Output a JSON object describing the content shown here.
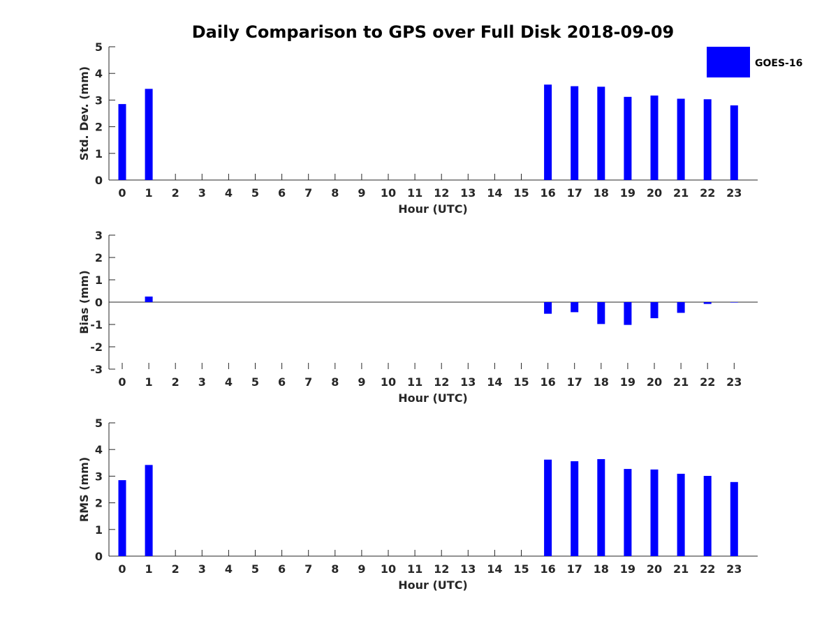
{
  "figure": {
    "title": "Daily Comparison to GPS over Full Disk 2018-09-09"
  },
  "legend": {
    "label": "GOES-16",
    "color": "#0000ff",
    "placement": "top-right"
  },
  "chart_data": [
    {
      "type": "bar",
      "name": "std-dev",
      "title": "Daily Comparison to GPS over Full Disk 2018-09-09",
      "xlabel": "Hour (UTC)",
      "ylabel": "Std. Dev. (mm)",
      "ylim": [
        0,
        5
      ],
      "yticks": [
        0,
        1,
        2,
        3,
        4,
        5
      ],
      "categories": [
        "0",
        "1",
        "2",
        "3",
        "4",
        "5",
        "6",
        "7",
        "8",
        "9",
        "10",
        "11",
        "12",
        "13",
        "14",
        "15",
        "16",
        "17",
        "18",
        "19",
        "20",
        "21",
        "22",
        "23"
      ],
      "series": [
        {
          "name": "GOES-16",
          "color": "#0000ff",
          "values": [
            2.85,
            3.42,
            null,
            null,
            null,
            null,
            null,
            null,
            null,
            null,
            null,
            null,
            null,
            null,
            null,
            null,
            3.58,
            3.52,
            3.5,
            3.12,
            3.17,
            3.05,
            3.03,
            2.8
          ]
        }
      ],
      "legend": "top-right",
      "grid": false
    },
    {
      "type": "bar",
      "name": "bias",
      "xlabel": "Hour (UTC)",
      "ylabel": "Bias (mm)",
      "ylim": [
        -3,
        3
      ],
      "yticks": [
        -3,
        -2,
        -1,
        0,
        1,
        2,
        3
      ],
      "categories": [
        "0",
        "1",
        "2",
        "3",
        "4",
        "5",
        "6",
        "7",
        "8",
        "9",
        "10",
        "11",
        "12",
        "13",
        "14",
        "15",
        "16",
        "17",
        "18",
        "19",
        "20",
        "21",
        "22",
        "23"
      ],
      "series": [
        {
          "name": "GOES-16",
          "color": "#0000ff",
          "values": [
            0.0,
            0.25,
            null,
            null,
            null,
            null,
            null,
            null,
            null,
            null,
            null,
            null,
            null,
            null,
            null,
            null,
            -0.52,
            -0.45,
            -0.98,
            -1.02,
            -0.72,
            -0.48,
            -0.08,
            -0.02
          ]
        }
      ],
      "grid": false
    },
    {
      "type": "bar",
      "name": "rms",
      "xlabel": "Hour (UTC)",
      "ylabel": "RMS (mm)",
      "ylim": [
        0,
        5
      ],
      "yticks": [
        0,
        1,
        2,
        3,
        4,
        5
      ],
      "categories": [
        "0",
        "1",
        "2",
        "3",
        "4",
        "5",
        "6",
        "7",
        "8",
        "9",
        "10",
        "11",
        "12",
        "13",
        "14",
        "15",
        "16",
        "17",
        "18",
        "19",
        "20",
        "21",
        "22",
        "23"
      ],
      "series": [
        {
          "name": "GOES-16",
          "color": "#0000ff",
          "values": [
            2.85,
            3.42,
            null,
            null,
            null,
            null,
            null,
            null,
            null,
            null,
            null,
            null,
            null,
            null,
            null,
            null,
            3.62,
            3.56,
            3.64,
            3.27,
            3.25,
            3.09,
            3.01,
            2.78
          ]
        }
      ],
      "grid": false
    }
  ]
}
